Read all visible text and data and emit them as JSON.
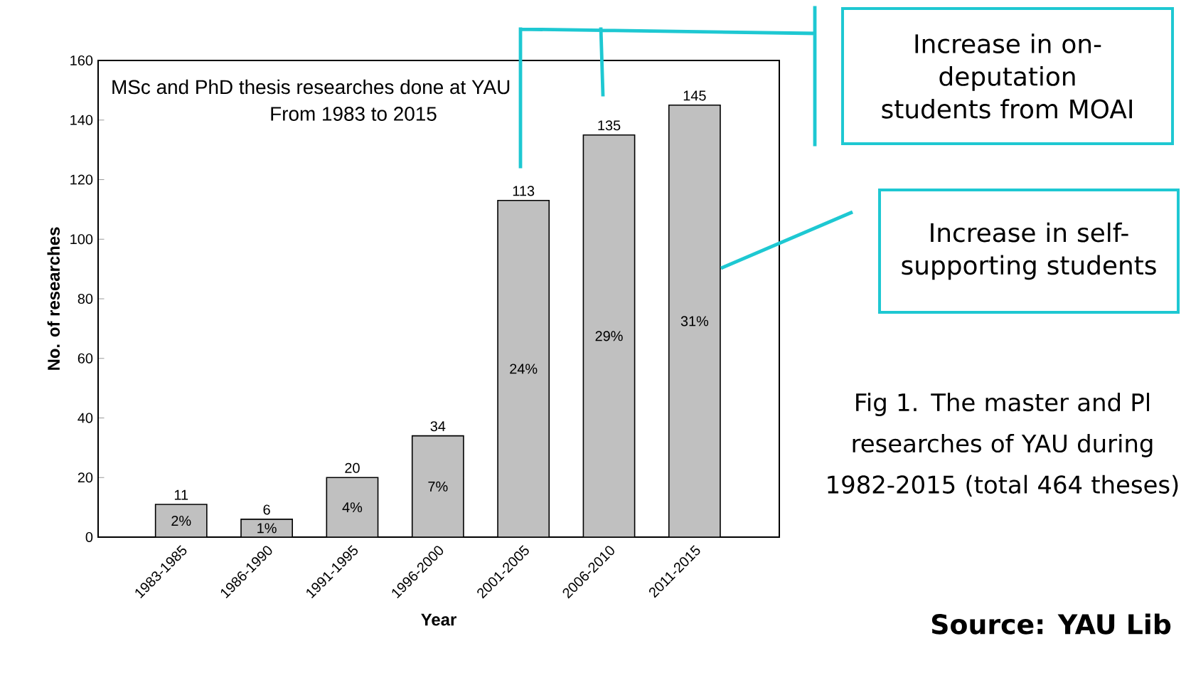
{
  "chart_data": {
    "type": "bar",
    "title": "MSc and PhD thesis researches done at YAU",
    "subtitle": "From 1983 to 2015",
    "xlabel": "Year",
    "ylabel": "No. of researches",
    "categories": [
      "1983-1985",
      "1986-1990",
      "1991-1995",
      "1996-2000",
      "2001-2005",
      "2006-2010",
      "2011-2015"
    ],
    "values": [
      11,
      6,
      20,
      34,
      113,
      135,
      145
    ],
    "data_labels": true,
    "color": "#c0c0c0",
    "ylim": [
      0,
      160
    ],
    "yticks": [
      0,
      20,
      40,
      60,
      80,
      100,
      120,
      140,
      160
    ],
    "grid": false,
    "annotations": [
      "Increase in on-deputation students from MOAI",
      "Increase in self-supporting students",
      "Fig 1. The master and Pl researches of YAU during 1982-2015 (total 464 theses)",
      "Source: YAU Lib",
      "2%",
      "1%",
      "4%",
      "7%",
      "24%",
      "29%",
      "31%"
    ]
  }
}
